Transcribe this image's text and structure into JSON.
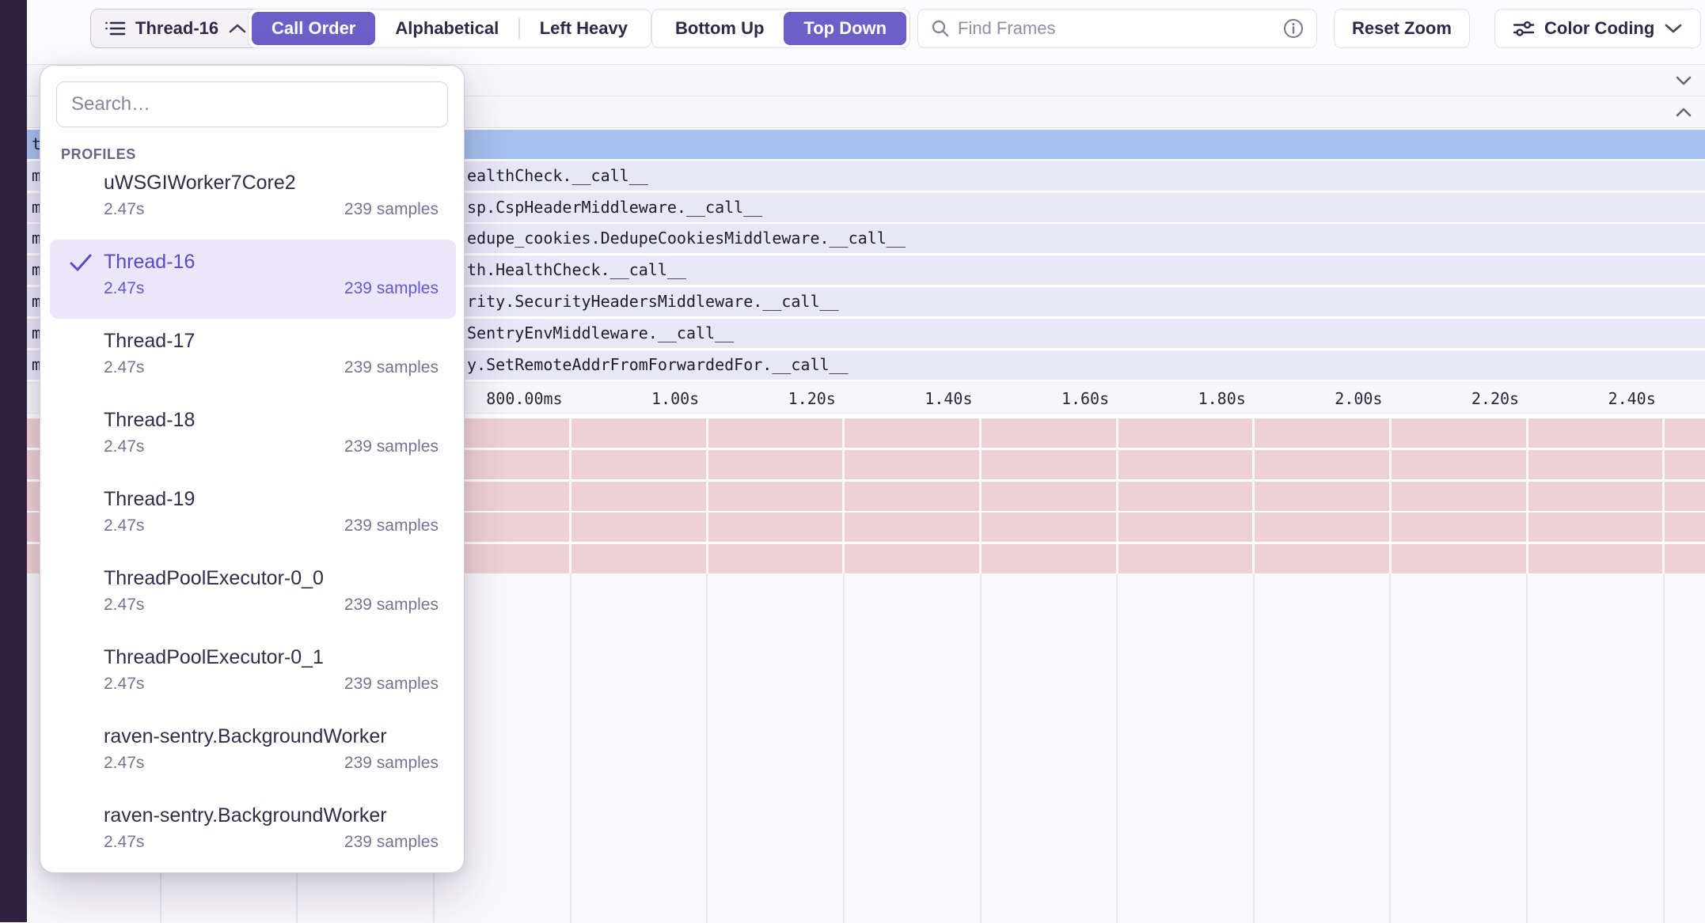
{
  "colors": {
    "accent": "#6c5fc7",
    "accent_strong": "#5b49c8",
    "siderail": "#31203f",
    "selected_frame_row": "#a6c0ef",
    "frame_row": "#e7e7f6",
    "hidden_thread_row": "#eed1d4"
  },
  "toolbar": {
    "thread_selector": {
      "label": "Thread-16"
    },
    "sort_options": [
      {
        "label": "Call Order",
        "selected": true
      },
      {
        "label": "Alphabetical",
        "selected": false
      },
      {
        "label": "Left Heavy",
        "selected": false
      }
    ],
    "direction_options": [
      {
        "label": "Bottom Up",
        "selected": false
      },
      {
        "label": "Top Down",
        "selected": true
      }
    ],
    "find_frames": {
      "placeholder": "Find Frames",
      "value": ""
    },
    "reset_zoom_label": "Reset Zoom",
    "color_coding_label": "Color Coding"
  },
  "thread_dropdown": {
    "search_placeholder": "Search…",
    "search_value": "",
    "section_label": "PROFILES",
    "items": [
      {
        "name": "uWSGIWorker7Core2",
        "duration": "2.47s",
        "samples": "239 samples",
        "selected": false
      },
      {
        "name": "Thread-16",
        "duration": "2.47s",
        "samples": "239 samples",
        "selected": true
      },
      {
        "name": "Thread-17",
        "duration": "2.47s",
        "samples": "239 samples",
        "selected": false
      },
      {
        "name": "Thread-18",
        "duration": "2.47s",
        "samples": "239 samples",
        "selected": false
      },
      {
        "name": "Thread-19",
        "duration": "2.47s",
        "samples": "239 samples",
        "selected": false
      },
      {
        "name": "ThreadPoolExecutor-0_0",
        "duration": "2.47s",
        "samples": "239 samples",
        "selected": false
      },
      {
        "name": "ThreadPoolExecutor-0_1",
        "duration": "2.47s",
        "samples": "239 samples",
        "selected": false
      },
      {
        "name": "raven-sentry.BackgroundWorker",
        "duration": "2.47s",
        "samples": "239 samples",
        "selected": false
      },
      {
        "name": "raven-sentry.BackgroundWorker",
        "duration": "2.47s",
        "samples": "239 samples",
        "selected": false
      }
    ]
  },
  "flamegraph": {
    "frame_rows": [
      {
        "left_fragment": "t",
        "label": "",
        "type": "selected"
      },
      {
        "left_fragment": "m",
        "label": "ealthCheck.__call__",
        "type": "frame"
      },
      {
        "left_fragment": "m",
        "label": "sp.CspHeaderMiddleware.__call__",
        "type": "frame"
      },
      {
        "left_fragment": "m",
        "label": "edupe_cookies.DedupeCookiesMiddleware.__call__",
        "type": "frame"
      },
      {
        "left_fragment": "m",
        "label": "th.HealthCheck.__call__",
        "type": "frame"
      },
      {
        "left_fragment": "m",
        "label": "rity.SecurityHeadersMiddleware.__call__",
        "type": "frame"
      },
      {
        "left_fragment": "m",
        "label": "SentryEnvMiddleware.__call__",
        "type": "frame"
      },
      {
        "left_fragment": "m",
        "label": "y.SetRemoteAddrFromForwardedFor.__call__",
        "type": "frame"
      }
    ],
    "axis_tick_labels": [
      "800.00ms",
      "1.00s",
      "1.20s",
      "1.40s",
      "1.60s",
      "1.80s",
      "2.00s",
      "2.20s",
      "2.40s"
    ],
    "hidden_thread_rows_count": 5
  }
}
